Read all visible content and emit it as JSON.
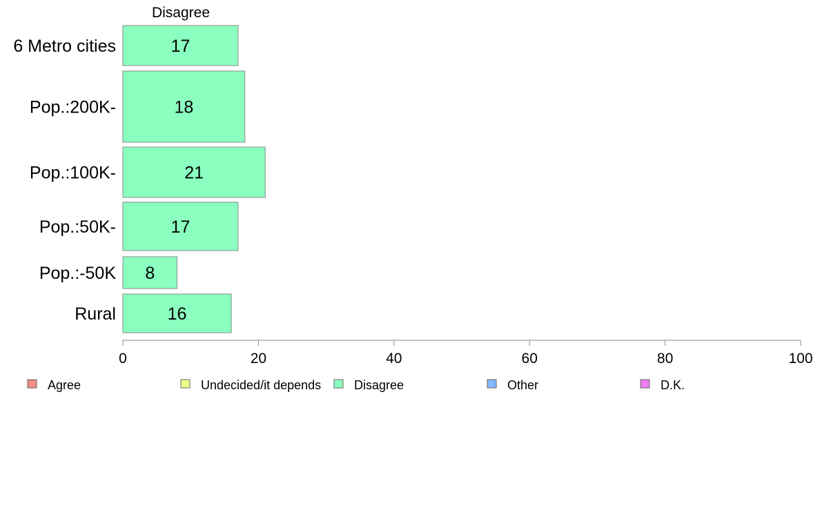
{
  "chart_data": {
    "type": "bar",
    "orientation": "horizontal",
    "title": "Disagree",
    "categories": [
      "6 Metro cities",
      "Pop.:200K-",
      "Pop.:100K-",
      "Pop.:50K-",
      "Pop.:-50K",
      "Rural"
    ],
    "series": [
      {
        "name": "Disagree",
        "color": "#8affbf",
        "values": [
          17,
          18,
          21,
          17,
          8,
          16
        ]
      }
    ],
    "xlim": [
      0,
      100
    ],
    "xticks": [
      0,
      20,
      40,
      60,
      80,
      100
    ],
    "grid": false,
    "legend": {
      "placement": "bottom",
      "entries": [
        {
          "label": "Agree",
          "color": "#f28b85"
        },
        {
          "label": "Undecided/it depends",
          "color": "#eaff8c"
        },
        {
          "label": "Disagree",
          "color": "#8affbf"
        },
        {
          "label": "Other",
          "color": "#84b6ff"
        },
        {
          "label": "D.K.",
          "color": "#ef7ef2"
        }
      ]
    }
  }
}
